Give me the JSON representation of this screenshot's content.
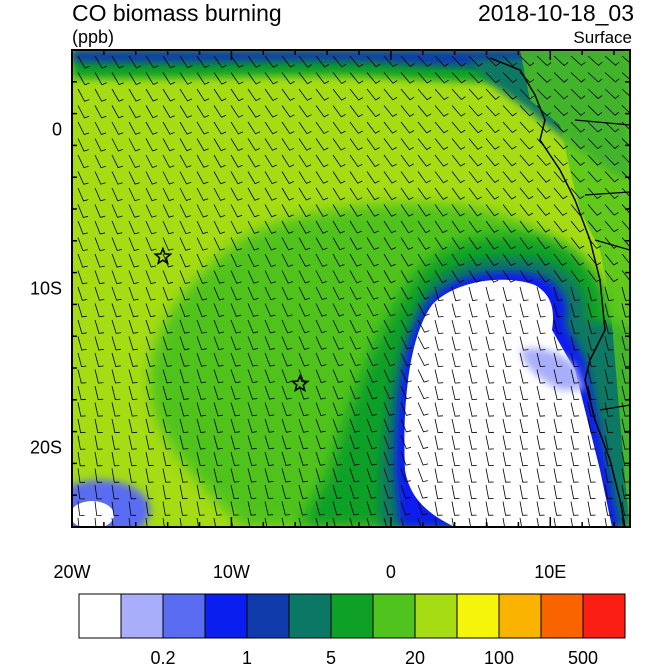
{
  "header": {
    "title": "CO biomass burning",
    "units": "(ppb)",
    "timestamp": "2018-10-18_03",
    "level": "Surface"
  },
  "map": {
    "lon_range": [
      -20,
      15
    ],
    "lat_range": [
      -25,
      5
    ],
    "x_tick_labels": [
      "20W",
      "10W",
      "0",
      "10E"
    ],
    "x_tick_values": [
      -20,
      -10,
      0,
      10
    ],
    "y_tick_labels": [
      "0",
      "10S",
      "20S"
    ],
    "y_tick_values": [
      0,
      -10,
      -20
    ],
    "markers": [
      {
        "name": "star",
        "lon": -14.3,
        "lat": -8.0
      },
      {
        "name": "star",
        "lon": -5.7,
        "lat": -16.0
      }
    ]
  },
  "colorbar": {
    "colors": [
      "#ffffff",
      "#a8aefa",
      "#5a6cf2",
      "#0a1ef0",
      "#0f3caa",
      "#0a7864",
      "#0fa028",
      "#50c31e",
      "#a5dc14",
      "#f5f50a",
      "#fab400",
      "#fa6400",
      "#fa1e14"
    ],
    "labels": [
      "0.2",
      "1",
      "5",
      "20",
      "100",
      "500"
    ]
  },
  "colors": {
    "background": "#ffffff",
    "frame": "#000000"
  }
}
